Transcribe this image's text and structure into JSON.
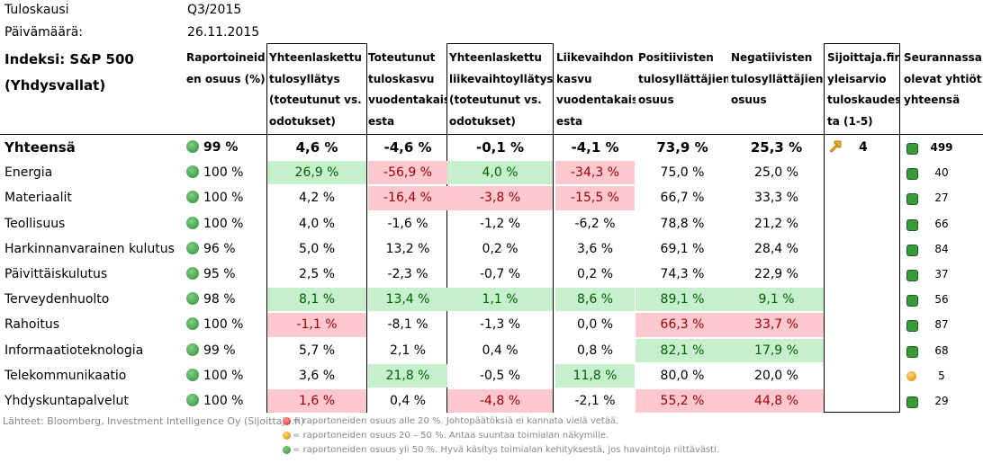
{
  "meta": {
    "period_label": "Tuloskausi",
    "period_value": "Q3/2015",
    "date_label": "Päivämäärä:",
    "date_value": "26.11.2015"
  },
  "index": {
    "line1": "Indeksi: S&P 500",
    "line2": "(Yhdysvallat)"
  },
  "headers": {
    "reported_share": [
      "Raportoineid",
      "en osuus (%)"
    ],
    "aggregate_earnings_surprise": [
      "Yhteenlaskettu",
      "tulosyllätys",
      "(toteutunut vs.",
      "odotukset)"
    ],
    "realized_earnings_growth": [
      "Toteutunut",
      "tuloskasvu",
      "vuodentakais",
      "esta"
    ],
    "aggregate_revenue_surprise": [
      "Yhteenlaskettu",
      "liikevaihtoyllätys",
      "(toteutunut vs.",
      "odotukset)"
    ],
    "revenue_growth": [
      "Liikevaihdon",
      "kasvu",
      "vuodentakais",
      "esta"
    ],
    "positive_surprises": [
      "Positiivisten",
      "tulosyllättäjien",
      "osuus"
    ],
    "negative_surprises": [
      "Negatiivisten",
      "tulosyllättäjien",
      "osuus"
    ],
    "investor_assessment": [
      "Sijoittaja.fin",
      "yleisarvio",
      "tuloskaudes",
      "ta (1-5)"
    ],
    "tracked_companies": [
      "Seurannassa",
      "olevat yhtiöt",
      "yhteensä"
    ]
  },
  "rows": [
    {
      "sector": "Yhteensä",
      "reported": "99 %",
      "earn_surp": "4,6 %",
      "earn_growth": "-4,6 %",
      "rev_surp": "-0,1 %",
      "rev_growth": "-4,1 %",
      "pos": "73,9 %",
      "neg": "25,3 %",
      "assessment": "4",
      "count": "499",
      "status": "green"
    },
    {
      "sector": "Energia",
      "reported": "100 %",
      "earn_surp": "26,9 %",
      "earn_growth": "-56,9 %",
      "rev_surp": "4,0 %",
      "rev_growth": "-34,3 %",
      "pos": "75,0 %",
      "neg": "25,0 %",
      "assessment": "",
      "count": "40",
      "status": "green"
    },
    {
      "sector": "Materiaalit",
      "reported": "100 %",
      "earn_surp": "4,2 %",
      "earn_growth": "-16,4 %",
      "rev_surp": "-3,8 %",
      "rev_growth": "-15,5 %",
      "pos": "66,7 %",
      "neg": "33,3 %",
      "assessment": "",
      "count": "27",
      "status": "green"
    },
    {
      "sector": "Teollisuus",
      "reported": "100 %",
      "earn_surp": "4,0 %",
      "earn_growth": "-1,6 %",
      "rev_surp": "-1,2 %",
      "rev_growth": "-6,2 %",
      "pos": "78,8 %",
      "neg": "21,2 %",
      "assessment": "",
      "count": "66",
      "status": "green"
    },
    {
      "sector": "Harkinnanvarainen kulutus",
      "reported": "96 %",
      "earn_surp": "5,0 %",
      "earn_growth": "13,2 %",
      "rev_surp": "0,2 %",
      "rev_growth": "3,6 %",
      "pos": "69,1 %",
      "neg": "28,4 %",
      "assessment": "",
      "count": "84",
      "status": "green"
    },
    {
      "sector": "Päivittäiskulutus",
      "reported": "95 %",
      "earn_surp": "2,5 %",
      "earn_growth": "-2,3 %",
      "rev_surp": "-0,7 %",
      "rev_growth": "0,2 %",
      "pos": "74,3 %",
      "neg": "22,9 %",
      "assessment": "",
      "count": "37",
      "status": "green"
    },
    {
      "sector": "Terveydenhuolto",
      "reported": "98 %",
      "earn_surp": "8,1 %",
      "earn_growth": "13,4 %",
      "rev_surp": "1,1 %",
      "rev_growth": "8,6 %",
      "pos": "89,1 %",
      "neg": "9,1 %",
      "assessment": "",
      "count": "56",
      "status": "green"
    },
    {
      "sector": "Rahoitus",
      "reported": "100 %",
      "earn_surp": "-1,1 %",
      "earn_growth": "-8,1 %",
      "rev_surp": "-1,3 %",
      "rev_growth": "0,0 %",
      "pos": "66,3 %",
      "neg": "33,7 %",
      "assessment": "",
      "count": "87",
      "status": "green"
    },
    {
      "sector": "Informaatioteknologia",
      "reported": "99 %",
      "earn_surp": "5,7 %",
      "earn_growth": "2,1 %",
      "rev_surp": "0,4 %",
      "rev_growth": "0,8 %",
      "pos": "82,1 %",
      "neg": "17,9 %",
      "assessment": "",
      "count": "68",
      "status": "green"
    },
    {
      "sector": "Telekommunikaatio",
      "reported": "100 %",
      "earn_surp": "3,6 %",
      "earn_growth": "21,8 %",
      "rev_surp": "-0,5 %",
      "rev_growth": "11,8 %",
      "pos": "80,0 %",
      "neg": "20,0 %",
      "assessment": "",
      "count": "5",
      "status": "orange"
    },
    {
      "sector": "Yhdyskuntapalvelut",
      "reported": "100 %",
      "earn_surp": "1,6 %",
      "earn_growth": "0,4 %",
      "rev_surp": "-4,8 %",
      "rev_growth": "-2,1 %",
      "pos": "55,2 %",
      "neg": "44,8 %",
      "assessment": "",
      "count": "29",
      "status": "green"
    }
  ],
  "highlights": {
    "earn_surp": [
      "",
      "green",
      "",
      "",
      "",
      "",
      "green",
      "red",
      "",
      "",
      "red"
    ],
    "earn_growth": [
      "",
      "red",
      "red",
      "",
      "",
      "",
      "green",
      "",
      "",
      "green",
      ""
    ],
    "rev_surp": [
      "",
      "green",
      "red",
      "",
      "",
      "",
      "green",
      "",
      "",
      "",
      "red"
    ],
    "rev_growth": [
      "",
      "red",
      "red",
      "",
      "",
      "",
      "green",
      "",
      "",
      "green",
      ""
    ],
    "pos": [
      "",
      "",
      "",
      "",
      "",
      "",
      "green",
      "red",
      "green",
      "",
      "red"
    ],
    "neg": [
      "",
      "",
      "",
      "",
      "",
      "",
      "green",
      "red",
      "green",
      "",
      "red"
    ]
  },
  "footer": {
    "sources": "Lähteet: Bloomberg, Investment Intelligence Oy (Sijoittaja.fi)",
    "legend_red": "= raportoneiden osuus alle 20 %. Johtopäätöksiä ei kannata vielä vetää.",
    "legend_orange": "= raportoneiden osuus 20 – 50 %. Antaa suuntaa toimialan näkymille.",
    "legend_green": "= raportoneiden osuus yli 50 %. Hyvä käsitys toimialan kehityksestä, jos havaintoja riittävästi."
  },
  "colors": {
    "green_bg": "#c6efce",
    "green_fg": "#006100",
    "red_bg": "#ffc7ce",
    "red_fg": "#9c0006"
  },
  "icons": {
    "status_icon": "check-circle-icon",
    "assessment_icon": "arrow-up-right-icon"
  }
}
